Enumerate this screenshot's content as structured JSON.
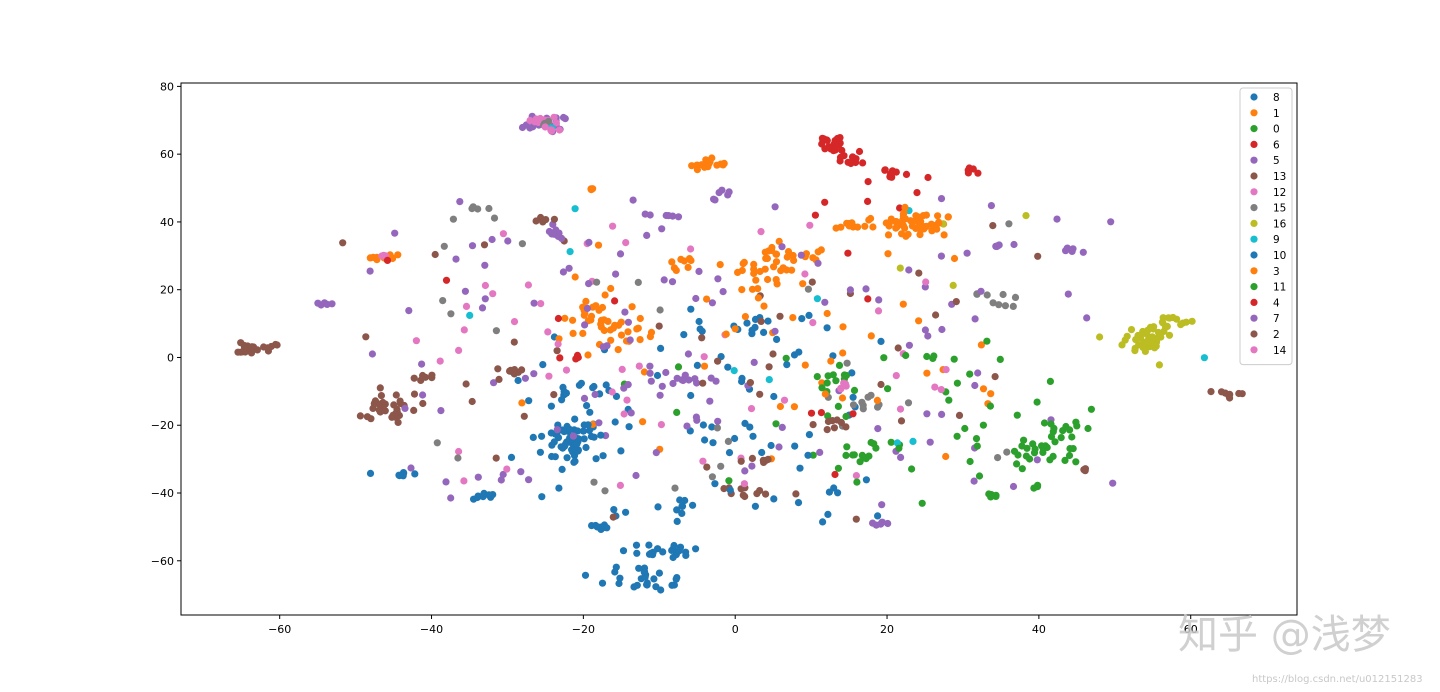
{
  "chart_data": {
    "type": "scatter",
    "title": "",
    "xlabel": "",
    "ylabel": "",
    "xlim": [
      -73,
      74
    ],
    "ylim": [
      -76,
      81
    ],
    "xticks": [
      -60,
      -40,
      -20,
      0,
      20,
      40,
      60
    ],
    "xtick_labels": [
      "−60",
      "−40",
      "−20",
      "0",
      "20",
      "40",
      "60"
    ],
    "yticks": [
      -60,
      -40,
      -20,
      0,
      20,
      40,
      60,
      80
    ],
    "ytick_labels": [
      "−60",
      "−40",
      "−20",
      "0",
      "20",
      "40",
      "60",
      "80"
    ],
    "grid": false,
    "legend_position": "top-right",
    "series": [
      {
        "name": "8",
        "color": "#1f77b4",
        "clusters": [
          {
            "x": -22,
            "y": -25,
            "sx": 2.5,
            "sy": 3.5,
            "n": 40
          },
          {
            "x": -20,
            "y": -11,
            "sx": 2,
            "sy": 2,
            "n": 12
          },
          {
            "x": -9,
            "y": -57,
            "sx": 3,
            "sy": 1.2,
            "n": 20
          },
          {
            "x": -12,
            "y": -66,
            "sx": 3,
            "sy": 1.5,
            "n": 18
          },
          {
            "x": -44,
            "y": -34.5,
            "sx": 1,
            "sy": 0.6,
            "n": 8
          },
          {
            "x": -18,
            "y": -50,
            "sx": 1,
            "sy": 0.6,
            "n": 8
          },
          {
            "x": -33,
            "y": -41,
            "sx": 1.2,
            "sy": 0.6,
            "n": 8
          },
          {
            "x": -7,
            "y": -44,
            "sx": 0.6,
            "sy": 2.5,
            "n": 8
          },
          {
            "x": 0,
            "y": 8,
            "sx": 3,
            "sy": 2,
            "n": 10
          }
        ],
        "scatter": {
          "n": 60,
          "xr": [
            -30,
            20
          ],
          "yr": [
            -50,
            15
          ]
        }
      },
      {
        "name": "1",
        "color": "#ff7f0e",
        "clusters": [
          {
            "x": 24,
            "y": 39,
            "sx": 2.5,
            "sy": 2,
            "n": 40
          },
          {
            "x": 4,
            "y": 27,
            "sx": 2,
            "sy": 3,
            "n": 22
          },
          {
            "x": -4,
            "y": 57,
            "sx": 1.5,
            "sy": 0.8,
            "n": 16
          },
          {
            "x": -17,
            "y": 8,
            "sx": 2.5,
            "sy": 3,
            "n": 28
          },
          {
            "x": -46,
            "y": 29.5,
            "sx": 1,
            "sy": 0.8,
            "n": 12
          },
          {
            "x": 9,
            "y": 31,
            "sx": 2,
            "sy": 1.5,
            "n": 12
          },
          {
            "x": 15,
            "y": 38.5,
            "sx": 1.5,
            "sy": 0.6,
            "n": 10
          },
          {
            "x": -7,
            "y": 28,
            "sx": 1,
            "sy": 1,
            "n": 8
          },
          {
            "x": -19,
            "y": 50,
            "sx": 0.4,
            "sy": 0.3,
            "n": 3
          }
        ],
        "scatter": {
          "n": 30,
          "xr": [
            -30,
            35
          ],
          "yr": [
            -30,
            35
          ]
        }
      },
      {
        "name": "0",
        "color": "#2ca02c",
        "clusters": [
          {
            "x": 41,
            "y": -27,
            "sx": 2,
            "sy": 1.5,
            "n": 18
          },
          {
            "x": 15,
            "y": -28,
            "sx": 1.5,
            "sy": 1.5,
            "n": 10
          },
          {
            "x": 34,
            "y": -41,
            "sx": 0.4,
            "sy": 0.5,
            "n": 5
          },
          {
            "x": 40,
            "y": -38,
            "sx": 0.4,
            "sy": 0.3,
            "n": 3
          },
          {
            "x": 12,
            "y": -8,
            "sx": 2,
            "sy": 2,
            "n": 10
          }
        ],
        "scatter": {
          "n": 35,
          "xr": [
            5,
            48
          ],
          "yr": [
            -35,
            0
          ]
        }
      },
      {
        "name": "6",
        "color": "#d62728",
        "clusters": [
          {
            "x": 12.5,
            "y": 64,
            "sx": 1,
            "sy": 1,
            "n": 14
          },
          {
            "x": 15,
            "y": 58,
            "sx": 1,
            "sy": 1,
            "n": 10
          },
          {
            "x": 21,
            "y": 54,
            "sx": 1.5,
            "sy": 1,
            "n": 10
          },
          {
            "x": 31,
            "y": 55.5,
            "sx": 0.8,
            "sy": 0.5,
            "n": 5
          }
        ],
        "scatter": {
          "n": 8,
          "xr": [
            8,
            30
          ],
          "yr": [
            40,
            65
          ]
        }
      },
      {
        "name": "5",
        "color": "#9467bd",
        "clusters": [
          {
            "x": -25,
            "y": 69,
            "sx": 1.2,
            "sy": 1,
            "n": 18
          },
          {
            "x": -54,
            "y": 16,
            "sx": 0.6,
            "sy": 0.4,
            "n": 5
          },
          {
            "x": -10,
            "y": 42,
            "sx": 1.2,
            "sy": 0.3,
            "n": 6
          },
          {
            "x": 36,
            "y": 33,
            "sx": 1.5,
            "sy": 0.4,
            "n": 6
          },
          {
            "x": 44,
            "y": 32,
            "sx": 1,
            "sy": 1,
            "n": 6
          },
          {
            "x": 19,
            "y": -49,
            "sx": 1,
            "sy": 0.5,
            "n": 6
          }
        ],
        "scatter": {
          "n": 70,
          "xr": [
            -50,
            50
          ],
          "yr": [
            -45,
            50
          ]
        }
      },
      {
        "name": "13",
        "color": "#8c564b",
        "clusters": [
          {
            "x": -63,
            "y": 3,
            "sx": 1.5,
            "sy": 0.8,
            "n": 20
          },
          {
            "x": -46,
            "y": -15,
            "sx": 1.8,
            "sy": 2,
            "n": 30
          },
          {
            "x": -29,
            "y": -5,
            "sx": 1.2,
            "sy": 1,
            "n": 8
          },
          {
            "x": 1,
            "y": -39.5,
            "sx": 1.5,
            "sy": 1,
            "n": 10
          },
          {
            "x": 65,
            "y": -11,
            "sx": 1.2,
            "sy": 0.6,
            "n": 8
          },
          {
            "x": 46,
            "y": -33,
            "sx": 0.4,
            "sy": 0.3,
            "n": 3
          }
        ],
        "scatter": {
          "n": 25,
          "xr": [
            -52,
            40
          ],
          "yr": [
            -40,
            40
          ]
        }
      },
      {
        "name": "12",
        "color": "#e377c2",
        "clusters": [
          {
            "x": -25,
            "y": 70,
            "sx": 1,
            "sy": 0.8,
            "n": 10
          },
          {
            "x": -46,
            "y": 30,
            "sx": 0.5,
            "sy": 0.4,
            "n": 3
          }
        ],
        "scatter": {
          "n": 30,
          "xr": [
            -42,
            32
          ],
          "yr": [
            -38,
            36
          ]
        }
      },
      {
        "name": "15",
        "color": "#7f7f7f",
        "clusters": [
          {
            "x": 17,
            "y": -13,
            "sx": 2,
            "sy": 2,
            "n": 10
          },
          {
            "x": 35,
            "y": 17,
            "sx": 1.5,
            "sy": 1,
            "n": 8
          },
          {
            "x": -33,
            "y": 44,
            "sx": 0.8,
            "sy": 0.3,
            "n": 4
          },
          {
            "x": -25,
            "y": 69,
            "sx": 0.8,
            "sy": 0.6,
            "n": 4
          }
        ],
        "scatter": {
          "n": 25,
          "xr": [
            -40,
            40
          ],
          "yr": [
            -40,
            45
          ]
        }
      },
      {
        "name": "16",
        "color": "#bcbd22",
        "clusters": [
          {
            "x": 54,
            "y": 5,
            "sx": 2,
            "sy": 3,
            "n": 45
          },
          {
            "x": 58,
            "y": 11,
            "sx": 1,
            "sy": 1,
            "n": 10
          }
        ],
        "scatter": {
          "n": 4,
          "xr": [
            20,
            40
          ],
          "yr": [
            15,
            45
          ]
        }
      },
      {
        "name": "9",
        "color": "#17becf",
        "clusters": [
          {
            "x": 62,
            "y": 0,
            "sx": 0.2,
            "sy": 0.2,
            "n": 1
          },
          {
            "x": -35,
            "y": 12.5,
            "sx": 0.2,
            "sy": 0.2,
            "n": 1
          },
          {
            "x": -25,
            "y": 68,
            "sx": 0.5,
            "sy": 0.5,
            "n": 2
          }
        ],
        "scatter": {
          "n": 8,
          "xr": [
            -30,
            30
          ],
          "yr": [
            -30,
            50
          ]
        }
      },
      {
        "name": "10",
        "color": "#1f77b4",
        "clusters": [
          {
            "x": -20,
            "y": -22,
            "sx": 2,
            "sy": 2,
            "n": 12
          },
          {
            "x": -12,
            "y": -64,
            "sx": 2,
            "sy": 1.5,
            "n": 8
          }
        ],
        "scatter": {
          "n": 20,
          "xr": [
            -25,
            15
          ],
          "yr": [
            -50,
            10
          ]
        }
      },
      {
        "name": "3",
        "color": "#ff7f0e",
        "clusters": [
          {
            "x": 22,
            "y": 41,
            "sx": 2,
            "sy": 2,
            "n": 15
          },
          {
            "x": 4,
            "y": 20,
            "sx": 2,
            "sy": 3,
            "n": 10
          },
          {
            "x": -20,
            "y": 14,
            "sx": 2,
            "sy": 2,
            "n": 12
          }
        ],
        "scatter": {
          "n": 15,
          "xr": [
            -25,
            35
          ],
          "yr": [
            -30,
            35
          ]
        }
      },
      {
        "name": "11",
        "color": "#2ca02c",
        "clusters": [
          {
            "x": 43,
            "y": -22,
            "sx": 2,
            "sy": 1.5,
            "n": 12
          },
          {
            "x": 25,
            "y": 0,
            "sx": 1,
            "sy": 0.6,
            "n": 4
          }
        ],
        "scatter": {
          "n": 15,
          "xr": [
            -20,
            45
          ],
          "yr": [
            -45,
            10
          ]
        }
      },
      {
        "name": "4",
        "color": "#d62728",
        "clusters": [
          {
            "x": 13,
            "y": 61,
            "sx": 1,
            "sy": 1,
            "n": 8
          },
          {
            "x": -21,
            "y": 0,
            "sx": 0.8,
            "sy": 0.6,
            "n": 4
          }
        ],
        "scatter": {
          "n": 10,
          "xr": [
            -50,
            45
          ],
          "yr": [
            -35,
            55
          ]
        }
      },
      {
        "name": "7",
        "color": "#9467bd",
        "clusters": [
          {
            "x": -2,
            "y": 48,
            "sx": 1,
            "sy": 0.8,
            "n": 6
          },
          {
            "x": -8,
            "y": -7,
            "sx": 3,
            "sy": 2,
            "n": 15
          },
          {
            "x": -24,
            "y": 38,
            "sx": 1,
            "sy": 1.5,
            "n": 8
          }
        ],
        "scatter": {
          "n": 50,
          "xr": [
            -45,
            35
          ],
          "yr": [
            -40,
            40
          ]
        }
      },
      {
        "name": "2",
        "color": "#8c564b",
        "clusters": [
          {
            "x": 3,
            "y": -30,
            "sx": 1,
            "sy": 0.5,
            "n": 6
          },
          {
            "x": -41,
            "y": -6,
            "sx": 1,
            "sy": 1,
            "n": 6
          },
          {
            "x": 12,
            "y": -19,
            "sx": 1.5,
            "sy": 1,
            "n": 8
          },
          {
            "x": -25,
            "y": 40,
            "sx": 0.8,
            "sy": 1,
            "n": 5
          }
        ],
        "scatter": {
          "n": 15,
          "xr": [
            -45,
            30
          ],
          "yr": [
            -48,
            20
          ]
        }
      },
      {
        "name": "14",
        "color": "#e377c2",
        "clusters": [
          {
            "x": -24,
            "y": 67.5,
            "sx": 0.8,
            "sy": 0.6,
            "n": 5
          },
          {
            "x": 14,
            "y": -8,
            "sx": 1.5,
            "sy": 1,
            "n": 5
          }
        ],
        "scatter": {
          "n": 20,
          "xr": [
            -35,
            30
          ],
          "yr": [
            -35,
            40
          ]
        }
      }
    ]
  },
  "watermark": {
    "text": "知乎 @浅梦",
    "url": "https://blog.csdn.net/u012151283"
  }
}
